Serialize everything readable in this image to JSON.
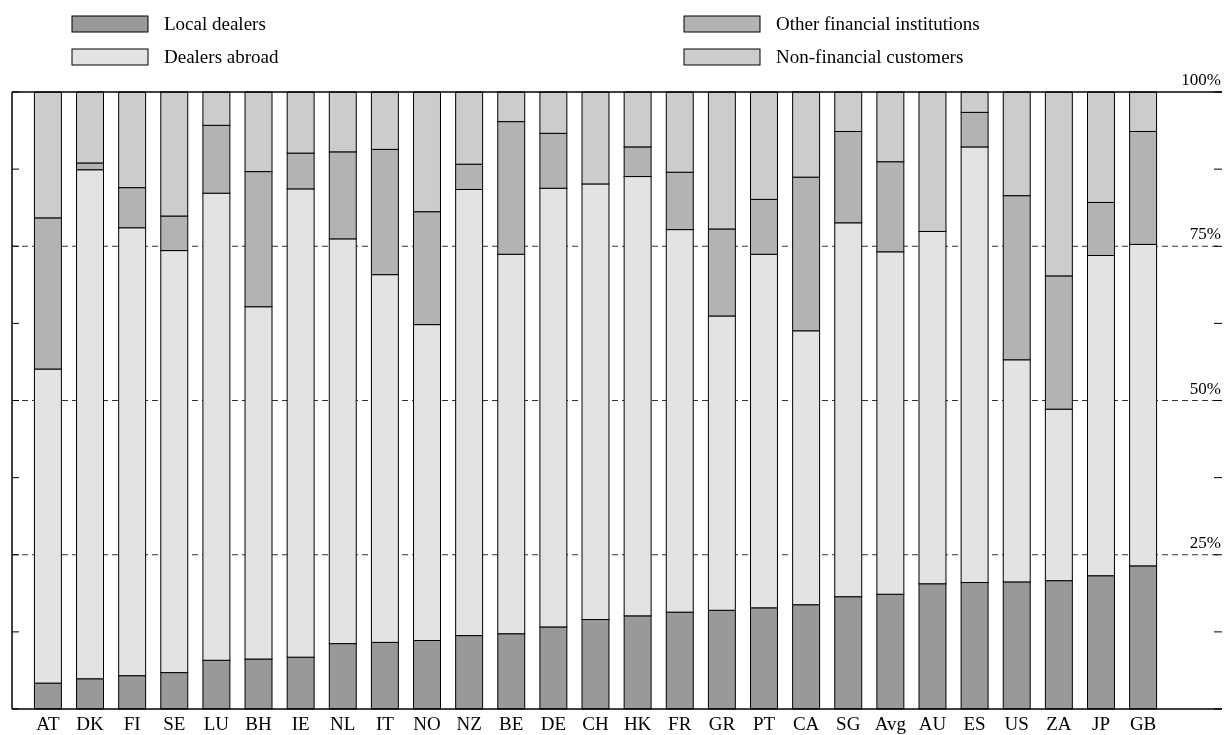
{
  "chart_data": {
    "type": "bar",
    "stacked": true,
    "legend": "top",
    "categories": [
      "AT",
      "DK",
      "FI",
      "SE",
      "LU",
      "BH",
      "IE",
      "NL",
      "IT",
      "NO",
      "NZ",
      "BE",
      "DE",
      "CH",
      "HK",
      "FR",
      "GR",
      "PT",
      "CA",
      "SG",
      "Avg",
      "AU",
      "ES",
      "US",
      "ZA",
      "JP",
      "GB"
    ],
    "series": [
      {
        "name": "Local dealers",
        "color": "#999999",
        "values": [
          4.2,
          4.9,
          5.4,
          5.9,
          7.9,
          8.1,
          8.4,
          10.6,
          10.8,
          11.1,
          11.9,
          12.2,
          13.3,
          14.5,
          15.1,
          15.7,
          16.0,
          16.4,
          16.9,
          18.2,
          18.6,
          20.3,
          20.5,
          20.6,
          20.8,
          21.6,
          23.2
        ]
      },
      {
        "name": "Dealers abroad",
        "color": "#e3e3e3",
        "values": [
          50.9,
          82.5,
          72.6,
          68.4,
          75.7,
          57.1,
          75.9,
          65.6,
          59.6,
          51.2,
          72.3,
          61.5,
          71.1,
          70.6,
          71.2,
          62.0,
          47.7,
          57.3,
          44.4,
          60.6,
          55.5,
          57.1,
          70.6,
          36.0,
          27.8,
          51.9,
          52.1
        ]
      },
      {
        "name": "Other financial institutions",
        "color": "#b3b3b3",
        "values": [
          24.5,
          1.1,
          6.5,
          5.6,
          11.0,
          21.9,
          5.8,
          14.1,
          20.3,
          18.3,
          4.1,
          21.5,
          8.9,
          0,
          4.8,
          9.3,
          14.1,
          8.9,
          24.9,
          14.8,
          14.6,
          0,
          5.6,
          26.6,
          21.6,
          8.6,
          18.3
        ]
      },
      {
        "name": "Non-financial customers",
        "color": "#cccccc",
        "values": [
          20.4,
          11.5,
          15.5,
          20.1,
          5.4,
          12.9,
          9.9,
          9.7,
          9.3,
          19.4,
          11.7,
          4.8,
          6.7,
          14.9,
          8.9,
          13.0,
          22.2,
          17.4,
          13.8,
          6.4,
          11.3,
          22.6,
          3.3,
          16.8,
          29.8,
          17.9,
          6.4
        ]
      }
    ],
    "ylim": [
      0,
      100
    ],
    "yticks": [
      {
        "value": 0,
        "label": null
      },
      {
        "value": 12.5,
        "label": null
      },
      {
        "value": 25,
        "label": "25%"
      },
      {
        "value": 37.5,
        "label": null
      },
      {
        "value": 50,
        "label": "50%"
      },
      {
        "value": 62.5,
        "label": null
      },
      {
        "value": 75,
        "label": "75%"
      },
      {
        "value": 87.5,
        "label": null
      },
      {
        "value": 100,
        "label": "100%"
      }
    ],
    "ref_lines": [
      {
        "axis": "y",
        "value": 25,
        "line_style": "dashed"
      },
      {
        "axis": "y",
        "value": 50,
        "line_style": "dashed"
      },
      {
        "axis": "y",
        "value": 75,
        "line_style": "dashed"
      }
    ]
  }
}
